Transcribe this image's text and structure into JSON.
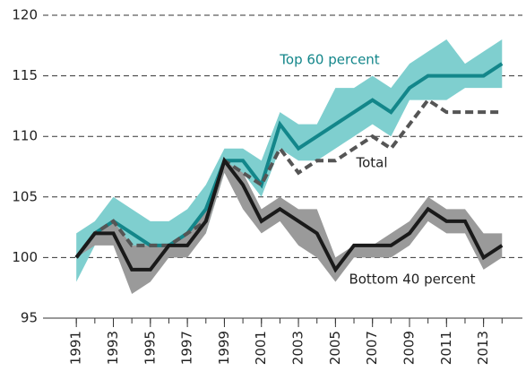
{
  "chart_data": {
    "type": "line",
    "x": [
      1991,
      1992,
      1993,
      1994,
      1995,
      1996,
      1997,
      1998,
      1999,
      2000,
      2001,
      2002,
      2003,
      2004,
      2005,
      2006,
      2007,
      2008,
      2009,
      2010,
      2011,
      2012,
      2013,
      2014
    ],
    "series": [
      {
        "name": "Top 60 percent",
        "color": "#13868a",
        "band_color": "#7fcfcf",
        "dashed": false,
        "values": [
          100,
          102,
          103,
          102,
          101,
          101,
          102,
          104,
          108,
          108,
          106,
          111,
          109,
          110,
          111,
          112,
          113,
          112,
          114,
          115,
          115,
          115,
          115,
          116
        ],
        "lower": [
          98,
          101,
          102,
          100,
          100,
          100,
          101,
          102,
          107,
          107,
          105,
          109,
          108,
          108,
          109,
          110,
          111,
          110,
          113,
          113,
          113,
          114,
          114,
          114
        ],
        "upper": [
          102,
          103,
          105,
          104,
          103,
          103,
          104,
          106,
          109,
          109,
          108,
          112,
          111,
          111,
          114,
          114,
          115,
          114,
          116,
          117,
          118,
          116,
          117,
          118
        ]
      },
      {
        "name": "Total",
        "color": "#555555",
        "dashed": true,
        "values": [
          100,
          102,
          103,
          101,
          101,
          101,
          102,
          103,
          108,
          107,
          106,
          109,
          107,
          108,
          108,
          109,
          110,
          109,
          111,
          113,
          112,
          112,
          112,
          112
        ]
      },
      {
        "name": "Bottom 40 percent",
        "color": "#1a1a1a",
        "band_color": "#9a9a9a",
        "dashed": false,
        "values": [
          100,
          102,
          102,
          99,
          99,
          101,
          101,
          103,
          108,
          106,
          103,
          104,
          103,
          102,
          99,
          101,
          101,
          101,
          102,
          104,
          103,
          103,
          100,
          101
        ],
        "lower": [
          100,
          101,
          101,
          97,
          98,
          100,
          100,
          102,
          107,
          104,
          102,
          103,
          101,
          100,
          98,
          100,
          100,
          100,
          101,
          103,
          102,
          102,
          99,
          100
        ],
        "upper": [
          100,
          102,
          103,
          101,
          101,
          101,
          102,
          104,
          108,
          107,
          104,
          105,
          104,
          104,
          100,
          101,
          101,
          102,
          103,
          105,
          104,
          104,
          102,
          102
        ]
      }
    ],
    "xlim": [
      1989.2,
      2015.1
    ],
    "xticks": [
      1991,
      1993,
      1995,
      1997,
      1999,
      2001,
      2003,
      2005,
      2007,
      2009,
      2011,
      2013
    ],
    "ylim": [
      95,
      120
    ],
    "yticks": [
      95,
      100,
      105,
      110,
      115,
      120
    ],
    "grid": true
  }
}
